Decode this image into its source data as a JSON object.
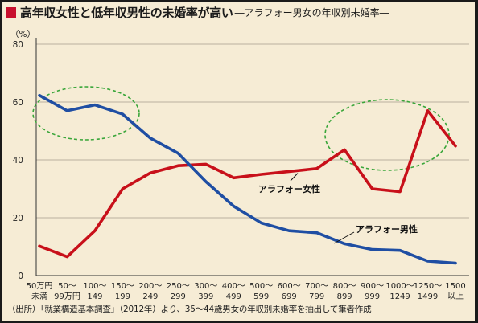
{
  "title": {
    "main": "高年収女性と低年収男性の未婚率が高い",
    "subtitle": "―アラフォー男女の年収別未婚率―"
  },
  "colors": {
    "title_square": "#c8102e",
    "background": "#f6ecd5",
    "grid": "#b9b0a0",
    "female_line": "#c8101a",
    "male_line": "#1f4ea3",
    "ellipse": "#3aa63a"
  },
  "source": "（出所）「就業構造基本調査」（2012年）より、35～44歳男女の年収別未婚率を抽出して筆者作成",
  "chart_data": {
    "type": "line",
    "unit_label": "（%）",
    "ylim": [
      0,
      80
    ],
    "yticks": [
      "0",
      "20",
      "40",
      "60",
      "80"
    ],
    "categories": [
      [
        "50万円",
        "未満"
      ],
      [
        "50～",
        "99万円"
      ],
      [
        "100～",
        "149"
      ],
      [
        "150～",
        "199"
      ],
      [
        "200～",
        "249"
      ],
      [
        "250～",
        "299"
      ],
      [
        "300～",
        "399"
      ],
      [
        "400～",
        "499"
      ],
      [
        "500～",
        "599"
      ],
      [
        "600～",
        "699"
      ],
      [
        "700～",
        "799"
      ],
      [
        "800～",
        "899"
      ],
      [
        "900～",
        "999"
      ],
      [
        "1000～",
        "1249"
      ],
      [
        "1250～",
        "1499"
      ],
      [
        "1500",
        "以上"
      ]
    ],
    "series": [
      {
        "name": "アラフォー女性",
        "color": "#c8101a",
        "values": [
          10.2,
          6.5,
          15.5,
          30.0,
          35.5,
          38.0,
          38.5,
          33.8,
          35.0,
          36.0,
          37.0,
          43.5,
          30.0,
          29.0,
          57.0,
          44.8
        ]
      },
      {
        "name": "アラフォー男性",
        "color": "#1f4ea3",
        "values": [
          62.3,
          57.0,
          59.0,
          55.8,
          47.5,
          42.3,
          32.5,
          24.0,
          18.2,
          15.5,
          14.8,
          11.0,
          9.0,
          8.7,
          5.0,
          4.3
        ]
      }
    ],
    "grid": true
  }
}
